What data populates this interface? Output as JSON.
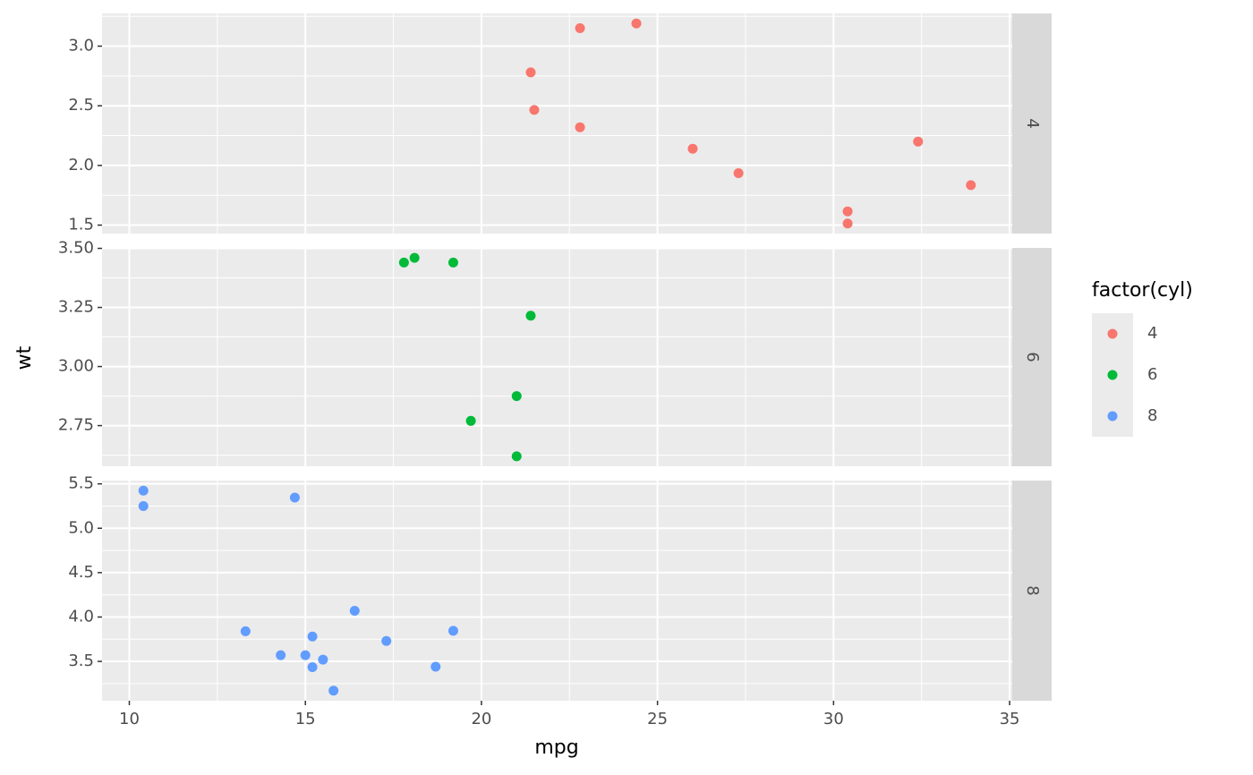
{
  "chart_data": {
    "type": "scatter",
    "x_label": "mpg",
    "y_label": "wt",
    "legend_title": "factor(cyl)",
    "xlim": [
      9.225,
      35.075
    ],
    "xticks": [
      10,
      15,
      20,
      25,
      30,
      35
    ],
    "grid": true,
    "minor_grid": true,
    "legend_position": "right",
    "series": [
      {
        "name": "4",
        "color": "#F8766D",
        "x": [
          22.8,
          24.4,
          22.8,
          32.4,
          30.4,
          33.9,
          21.5,
          27.3,
          26.0,
          30.4,
          21.4
        ],
        "values": [
          2.32,
          3.19,
          3.15,
          2.2,
          1.615,
          1.835,
          2.465,
          1.935,
          2.14,
          1.513,
          2.78
        ],
        "ylim": [
          1.429,
          3.274
        ],
        "yticks": [
          {
            "value": 1.5,
            "label": "1.5"
          },
          {
            "value": 2,
            "label": "2.0"
          },
          2.5,
          {
            "value": 3,
            "label": "3.0"
          }
        ]
      },
      {
        "name": "6",
        "color": "#00BA38",
        "x": [
          21.0,
          21.0,
          21.4,
          18.1,
          19.2,
          17.8,
          19.7
        ],
        "values": [
          2.62,
          2.875,
          3.215,
          3.46,
          3.44,
          3.44,
          2.77
        ],
        "ylim": [
          2.578,
          3.502
        ],
        "yticks": [
          2.75,
          {
            "value": 3,
            "label": "3.00"
          },
          3.25,
          {
            "value": 3.5,
            "label": "3.50"
          }
        ]
      },
      {
        "name": "8",
        "color": "#619CFF",
        "x": [
          18.7,
          14.3,
          16.4,
          17.3,
          15.2,
          10.4,
          10.4,
          14.7,
          15.5,
          15.2,
          13.3,
          19.2,
          15.8,
          15.0
        ],
        "values": [
          3.44,
          3.57,
          4.07,
          3.73,
          3.78,
          5.25,
          5.424,
          5.345,
          3.52,
          3.435,
          3.84,
          3.845,
          3.17,
          3.57
        ],
        "ylim": [
          3.057,
          5.537
        ],
        "yticks": [
          3.5,
          {
            "value": 4,
            "label": "4.0"
          },
          4.5,
          {
            "value": 5,
            "label": "5.0"
          },
          5.5
        ]
      }
    ]
  }
}
